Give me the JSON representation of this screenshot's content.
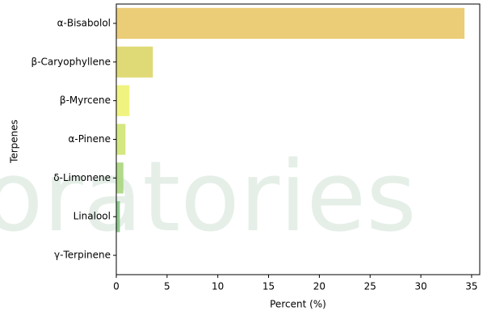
{
  "chart_data": {
    "type": "barh",
    "watermark": "oratories",
    "xlabel": "Percent (%)",
    "ylabel": "Terpenes",
    "categories": [
      "α-Bisabolol",
      "β-Caryophyllene",
      "β-Myrcene",
      "α-Pinene",
      "δ-Limonene",
      "Linalool",
      "γ-Terpinene"
    ],
    "values": [
      34.3,
      3.6,
      1.3,
      0.9,
      0.7,
      0.35,
      0
    ],
    "colors": [
      "#e9c869",
      "#dcd666",
      "#eef271",
      "#cfe473",
      "#a9d67c",
      "#82c47f",
      "#63b182"
    ],
    "xlim": [
      0,
      35.8
    ],
    "xticks": [
      0,
      5,
      10,
      15,
      20,
      25,
      30,
      35
    ]
  }
}
